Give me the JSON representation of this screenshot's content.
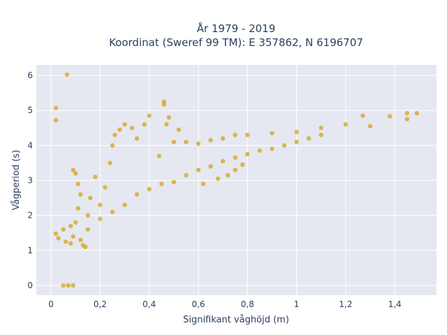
{
  "chart_data": {
    "type": "scatter",
    "title_lines": [
      "År 1979 - 2019",
      "Koordinat (Sweref 99 TM): E 357862, N 6196707"
    ],
    "xlabel": "Signifikant våghöjd (m)",
    "ylabel": "Vågperiod (s)",
    "xlim": [
      -0.06,
      1.57
    ],
    "ylim": [
      -0.28,
      6.3
    ],
    "x_ticks": [
      0,
      0.2,
      0.4,
      0.6,
      0.8,
      1,
      1.2,
      1.4
    ],
    "x_tick_labels": [
      "0",
      "0,2",
      "0,4",
      "0,6",
      "0,8",
      "1",
      "1,2",
      "1,4"
    ],
    "y_ticks": [
      0,
      1,
      2,
      3,
      4,
      5,
      6
    ],
    "y_tick_labels": [
      "0",
      "1",
      "2",
      "3",
      "4",
      "5",
      "6"
    ],
    "grid": true,
    "colors": {
      "marker": "#d4a319",
      "plot_bg": "#e5e8f1",
      "grid": "#ffffff",
      "text": "#2a3f5f"
    },
    "series": [
      {
        "values": [
          [
            0.065,
            6.02
          ],
          [
            0.02,
            5.07
          ],
          [
            0.02,
            4.72
          ],
          [
            0.05,
            0.0
          ],
          [
            0.07,
            0.0
          ],
          [
            0.09,
            0.0
          ],
          [
            0.02,
            1.48
          ],
          [
            0.03,
            1.35
          ],
          [
            0.05,
            1.6
          ],
          [
            0.06,
            1.25
          ],
          [
            0.08,
            1.7
          ],
          [
            0.09,
            1.4
          ],
          [
            0.1,
            1.8
          ],
          [
            0.11,
            2.2
          ],
          [
            0.12,
            2.6
          ],
          [
            0.1,
            3.2
          ],
          [
            0.09,
            3.3
          ],
          [
            0.11,
            2.9
          ],
          [
            0.13,
            1.15
          ],
          [
            0.15,
            2.0
          ],
          [
            0.16,
            2.5
          ],
          [
            0.18,
            3.1
          ],
          [
            0.2,
            2.3
          ],
          [
            0.22,
            2.8
          ],
          [
            0.24,
            3.5
          ],
          [
            0.25,
            4.0
          ],
          [
            0.26,
            4.3
          ],
          [
            0.28,
            4.45
          ],
          [
            0.3,
            4.6
          ],
          [
            0.33,
            4.5
          ],
          [
            0.35,
            4.2
          ],
          [
            0.38,
            4.6
          ],
          [
            0.4,
            4.85
          ],
          [
            0.44,
            3.7
          ],
          [
            0.46,
            5.25
          ],
          [
            0.46,
            5.17
          ],
          [
            0.48,
            4.8
          ],
          [
            0.47,
            4.6
          ],
          [
            0.5,
            4.1
          ],
          [
            0.52,
            4.45
          ],
          [
            0.55,
            4.1
          ],
          [
            0.6,
            4.05
          ],
          [
            0.65,
            4.15
          ],
          [
            0.7,
            4.2
          ],
          [
            0.75,
            4.3
          ],
          [
            0.8,
            4.3
          ],
          [
            0.9,
            4.35
          ],
          [
            1.0,
            4.38
          ],
          [
            1.1,
            4.5
          ],
          [
            1.2,
            4.6
          ],
          [
            1.27,
            4.85
          ],
          [
            1.3,
            4.55
          ],
          [
            1.38,
            4.83
          ],
          [
            1.45,
            4.92
          ],
          [
            1.45,
            4.75
          ],
          [
            1.49,
            4.92
          ],
          [
            0.35,
            2.6
          ],
          [
            0.4,
            2.75
          ],
          [
            0.45,
            2.9
          ],
          [
            0.5,
            2.95
          ],
          [
            0.55,
            3.15
          ],
          [
            0.6,
            3.3
          ],
          [
            0.65,
            3.4
          ],
          [
            0.7,
            3.55
          ],
          [
            0.75,
            3.65
          ],
          [
            0.8,
            3.75
          ],
          [
            0.85,
            3.85
          ],
          [
            0.9,
            3.9
          ],
          [
            0.95,
            4.0
          ],
          [
            1.0,
            4.1
          ],
          [
            1.05,
            4.2
          ],
          [
            1.1,
            4.3
          ],
          [
            0.68,
            3.05
          ],
          [
            0.72,
            3.15
          ],
          [
            0.75,
            3.3
          ],
          [
            0.78,
            3.45
          ],
          [
            0.62,
            2.9
          ],
          [
            0.3,
            2.3
          ],
          [
            0.25,
            2.1
          ],
          [
            0.2,
            1.9
          ],
          [
            0.15,
            1.6
          ],
          [
            0.12,
            1.3
          ],
          [
            0.14,
            1.1
          ],
          [
            0.08,
            1.2
          ]
        ]
      }
    ]
  }
}
